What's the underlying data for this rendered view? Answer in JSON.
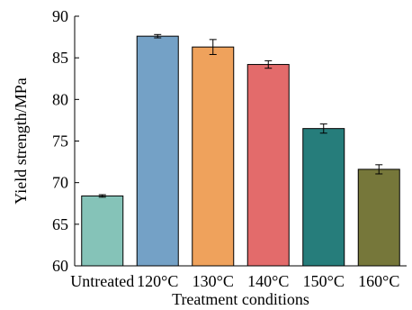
{
  "chart_data": {
    "type": "bar",
    "categories": [
      "Untreated",
      "120°C",
      "130°C",
      "140°C",
      "150°C",
      "160°C"
    ],
    "values": [
      68.4,
      87.6,
      86.3,
      84.2,
      76.5,
      71.6
    ],
    "errors": [
      0.15,
      0.2,
      0.9,
      0.45,
      0.55,
      0.55
    ],
    "colors": [
      "#85c3b8",
      "#74a1c6",
      "#efa25c",
      "#e36b6b",
      "#267d7b",
      "#76773a"
    ],
    "xlabel": "Treatment conditions",
    "ylabel": "Yield strength/MPa",
    "ylim": [
      60,
      90
    ],
    "yticks": [
      "60",
      "65",
      "70",
      "75",
      "80",
      "85",
      "90"
    ],
    "grid": false
  }
}
